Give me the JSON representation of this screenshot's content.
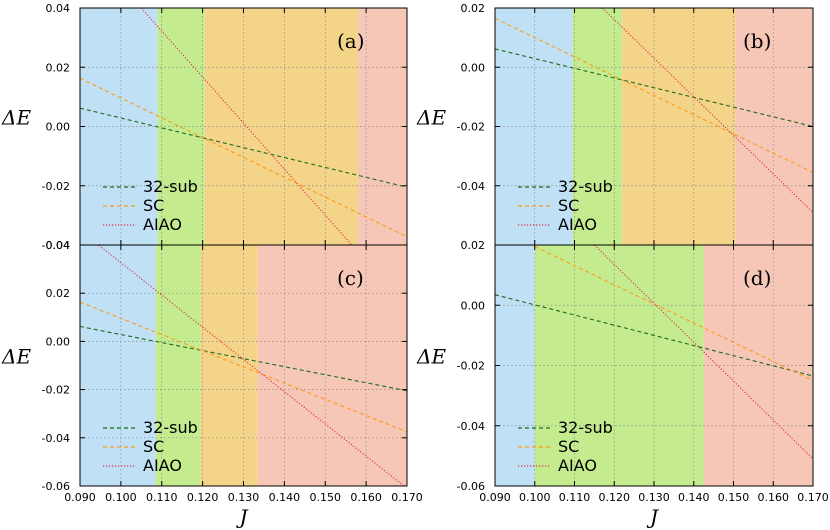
{
  "colors": {
    "bg_blue": "#bfe0f5",
    "bg_green": "#c4ec8e",
    "bg_orange": "#f3d488",
    "bg_pink": "#f6c6b6",
    "line_32sub": "#1e6b1e",
    "line_SC": "#ff9a1a",
    "line_AIAO": "#e0304a"
  },
  "chart_data": [
    {
      "type": "line",
      "panel_label": "(a)",
      "xlabel": "",
      "ylabel": "ΔE",
      "xlim": [
        0.09,
        0.17
      ],
      "ylim": [
        -0.04,
        0.04
      ],
      "x_ticks": [],
      "y_ticks": [
        "0.04",
        "0.02",
        "0.00",
        "-0.02",
        "-0.04"
      ],
      "regions": [
        {
          "from": 0.09,
          "to": 0.109,
          "color": "bg_blue"
        },
        {
          "from": 0.109,
          "to": 0.1205,
          "color": "bg_green"
        },
        {
          "from": 0.1205,
          "to": 0.158,
          "color": "bg_orange"
        },
        {
          "from": 0.158,
          "to": 0.17,
          "color": "bg_pink"
        }
      ],
      "series": [
        {
          "name": "32-sub",
          "style": "dashed",
          "color": "line_32sub",
          "x": [
            0.09,
            0.17
          ],
          "y": [
            0.0062,
            -0.0205
          ]
        },
        {
          "name": "SC",
          "style": "dashed",
          "color": "line_SC",
          "x": [
            0.09,
            0.17
          ],
          "y": [
            0.0163,
            -0.0372
          ]
        },
        {
          "name": "AIAO",
          "style": "dotted",
          "color": "line_AIAO",
          "x": [
            0.105,
            0.17
          ],
          "y": [
            0.04,
            -0.061
          ]
        }
      ]
    },
    {
      "type": "line",
      "panel_label": "(b)",
      "xlabel": "",
      "ylabel": "ΔE",
      "xlim": [
        0.09,
        0.17
      ],
      "ylim": [
        -0.06,
        0.02
      ],
      "x_ticks": [],
      "y_ticks": [
        "0.02",
        "0.00",
        "-0.02",
        "-0.04"
      ],
      "regions": [
        {
          "from": 0.09,
          "to": 0.1095,
          "color": "bg_blue"
        },
        {
          "from": 0.1095,
          "to": 0.122,
          "color": "bg_green"
        },
        {
          "from": 0.122,
          "to": 0.1505,
          "color": "bg_orange"
        },
        {
          "from": 0.1505,
          "to": 0.17,
          "color": "bg_pink"
        }
      ],
      "series": [
        {
          "name": "32-sub",
          "style": "dashed",
          "color": "line_32sub",
          "x": [
            0.09,
            0.17
          ],
          "y": [
            0.0062,
            -0.02
          ]
        },
        {
          "name": "SC",
          "style": "dashed",
          "color": "line_SC",
          "x": [
            0.09,
            0.17
          ],
          "y": [
            0.0165,
            -0.0355
          ]
        },
        {
          "name": "AIAO",
          "style": "dotted",
          "color": "line_AIAO",
          "x": [
            0.117,
            0.17
          ],
          "y": [
            0.02,
            -0.049
          ]
        }
      ]
    },
    {
      "type": "line",
      "panel_label": "(c)",
      "xlabel": "J",
      "ylabel": "ΔE",
      "xlim": [
        0.09,
        0.17
      ],
      "ylim": [
        -0.06,
        0.04
      ],
      "x_ticks": [
        "0.090",
        "0.100",
        "0.110",
        "0.120",
        "0.130",
        "0.140",
        "0.150",
        "0.160",
        "0.170"
      ],
      "y_ticks": [
        "0.04",
        "0.02",
        "0.00",
        "-0.02",
        "-0.04",
        "-0.06"
      ],
      "regions": [
        {
          "from": 0.09,
          "to": 0.1085,
          "color": "bg_blue"
        },
        {
          "from": 0.1085,
          "to": 0.1195,
          "color": "bg_green"
        },
        {
          "from": 0.1195,
          "to": 0.1335,
          "color": "bg_orange"
        },
        {
          "from": 0.1335,
          "to": 0.17,
          "color": "bg_pink"
        }
      ],
      "series": [
        {
          "name": "32-sub",
          "style": "dashed",
          "color": "line_32sub",
          "x": [
            0.09,
            0.17
          ],
          "y": [
            0.0062,
            -0.0205
          ]
        },
        {
          "name": "SC",
          "style": "dashed",
          "color": "line_SC",
          "x": [
            0.09,
            0.17
          ],
          "y": [
            0.0163,
            -0.0375
          ]
        },
        {
          "name": "AIAO",
          "style": "dotted",
          "color": "line_AIAO",
          "x": [
            0.09,
            0.17
          ],
          "y": [
            0.046,
            -0.061
          ]
        }
      ]
    },
    {
      "type": "line",
      "panel_label": "(d)",
      "xlabel": "J",
      "ylabel": "ΔE",
      "xlim": [
        0.09,
        0.17
      ],
      "ylim": [
        -0.06,
        0.02
      ],
      "x_ticks": [
        "0.090",
        "0.100",
        "0.110",
        "0.120",
        "0.130",
        "0.140",
        "0.150",
        "0.160",
        "0.170"
      ],
      "y_ticks": [
        "0.02",
        "0.00",
        "-0.02",
        "-0.04",
        "-0.06"
      ],
      "regions": [
        {
          "from": 0.09,
          "to": 0.1,
          "color": "bg_blue"
        },
        {
          "from": 0.1,
          "to": 0.1425,
          "color": "bg_green"
        },
        {
          "from": 0.1425,
          "to": 0.17,
          "color": "bg_pink"
        }
      ],
      "series": [
        {
          "name": "32-sub",
          "style": "dashed",
          "color": "line_32sub",
          "x": [
            0.09,
            0.17
          ],
          "y": [
            0.0035,
            -0.0235
          ]
        },
        {
          "name": "SC",
          "style": "dashed",
          "color": "line_SC",
          "x": [
            0.1,
            0.17
          ],
          "y": [
            0.0195,
            -0.025
          ]
        },
        {
          "name": "AIAO",
          "style": "dotted",
          "color": "line_AIAO",
          "x": [
            0.115,
            0.17
          ],
          "y": [
            0.02,
            -0.051
          ]
        }
      ]
    }
  ]
}
